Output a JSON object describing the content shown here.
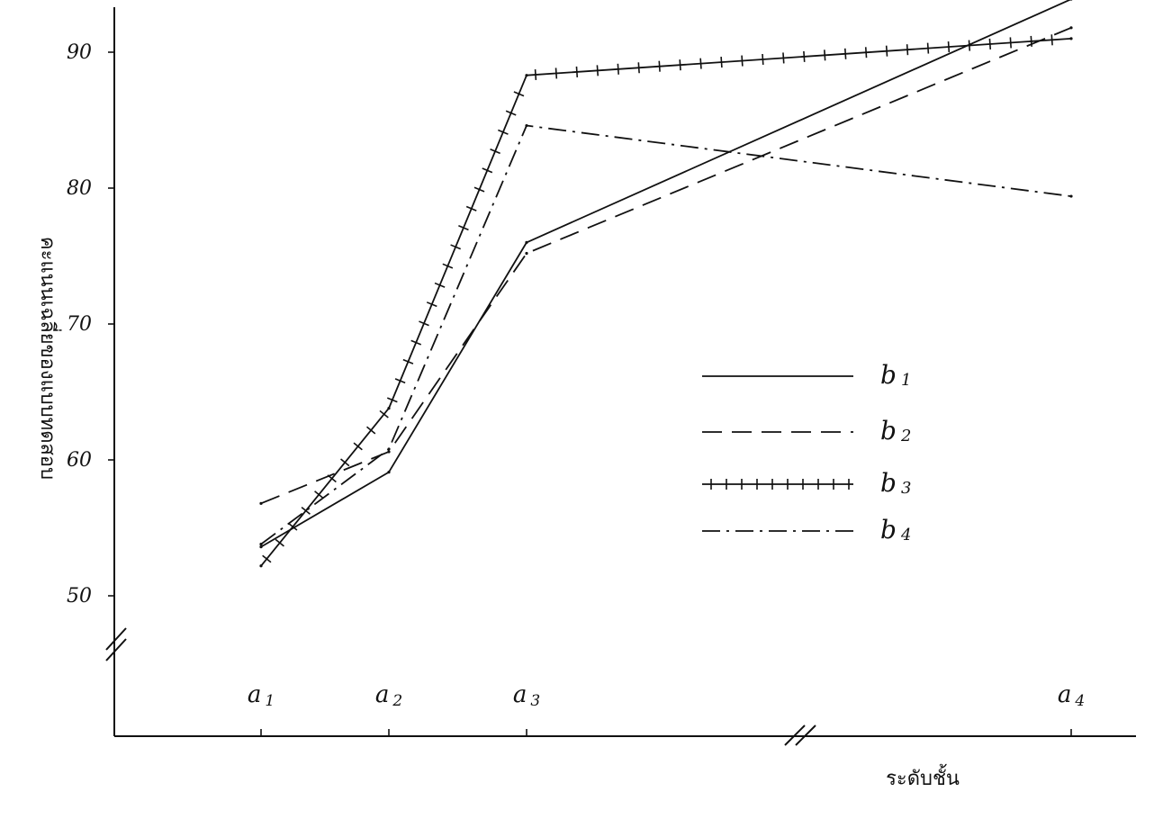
{
  "chart_data": {
    "type": "line",
    "categories": [
      "a1",
      "a2",
      "a3",
      "a4"
    ],
    "xlabel": "ระดับชั้น",
    "ylabel": "คะแนนเฉลี่ยของแบบทดสอบ",
    "ylim": [
      45,
      93
    ],
    "yticks": [
      50,
      60,
      70,
      80,
      90
    ],
    "axis_breaks": [
      "y",
      "x"
    ],
    "legend_position": "right",
    "grid": false,
    "series": [
      {
        "name": "b1",
        "dash": "solid",
        "marker": "none",
        "values": [
          53.6,
          59.1,
          76.0,
          93.9
        ]
      },
      {
        "name": "b2",
        "dash": "dashed",
        "marker": "none",
        "values": [
          56.8,
          60.6,
          75.2,
          91.8
        ]
      },
      {
        "name": "b3",
        "dash": "solid",
        "marker": "plus",
        "values": [
          52.2,
          63.8,
          88.3,
          91.0
        ]
      },
      {
        "name": "b4",
        "dash": "dashdot",
        "marker": "none",
        "values": [
          53.8,
          60.8,
          84.6,
          79.4
        ]
      }
    ]
  }
}
